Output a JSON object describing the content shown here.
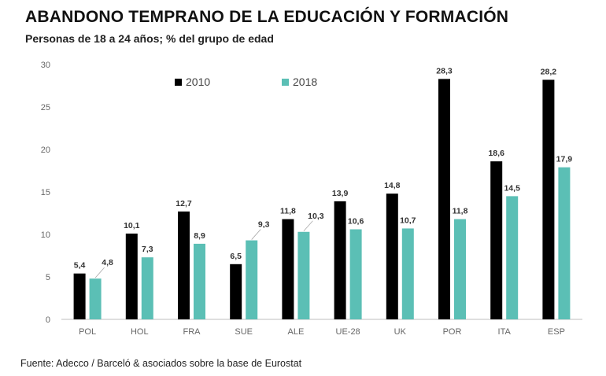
{
  "title": "ABANDONO TEMPRANO DE LA EDUCACIÓN Y FORMACIÓN",
  "subtitle": "Personas de 18 a 24 años; % del grupo de edad",
  "source": "Fuente: Adecco / Barceló & asociados sobre la base de Eurostat",
  "colors": {
    "2010": "#000000",
    "2018": "#5bbfb5"
  },
  "chart_data": {
    "type": "bar",
    "categories": [
      "POL",
      "HOL",
      "FRA",
      "SUE",
      "ALE",
      "UE-28",
      "UK",
      "POR",
      "ITA",
      "ESP"
    ],
    "series": [
      {
        "name": "2010",
        "values": [
          5.4,
          10.1,
          12.7,
          6.5,
          11.8,
          13.9,
          14.8,
          28.3,
          18.6,
          28.2
        ],
        "labels": [
          "5,4",
          "10,1",
          "12,7",
          "6,5",
          "11,8",
          "13,9",
          "14,8",
          "28,3",
          "18,6",
          "28,2"
        ]
      },
      {
        "name": "2018",
        "values": [
          4.8,
          7.3,
          8.9,
          9.3,
          10.3,
          10.6,
          10.7,
          11.8,
          14.5,
          17.9
        ],
        "labels": [
          "4,8",
          "7,3",
          "8,9",
          "9,3",
          "10,3",
          "10,6",
          "10,7",
          "11,8",
          "14,5",
          "17,9"
        ]
      }
    ],
    "yticks": [
      "0",
      "5",
      "10",
      "15",
      "20",
      "25",
      "30"
    ],
    "ylim": [
      0,
      30
    ],
    "grid": false,
    "legend": "top-left"
  }
}
